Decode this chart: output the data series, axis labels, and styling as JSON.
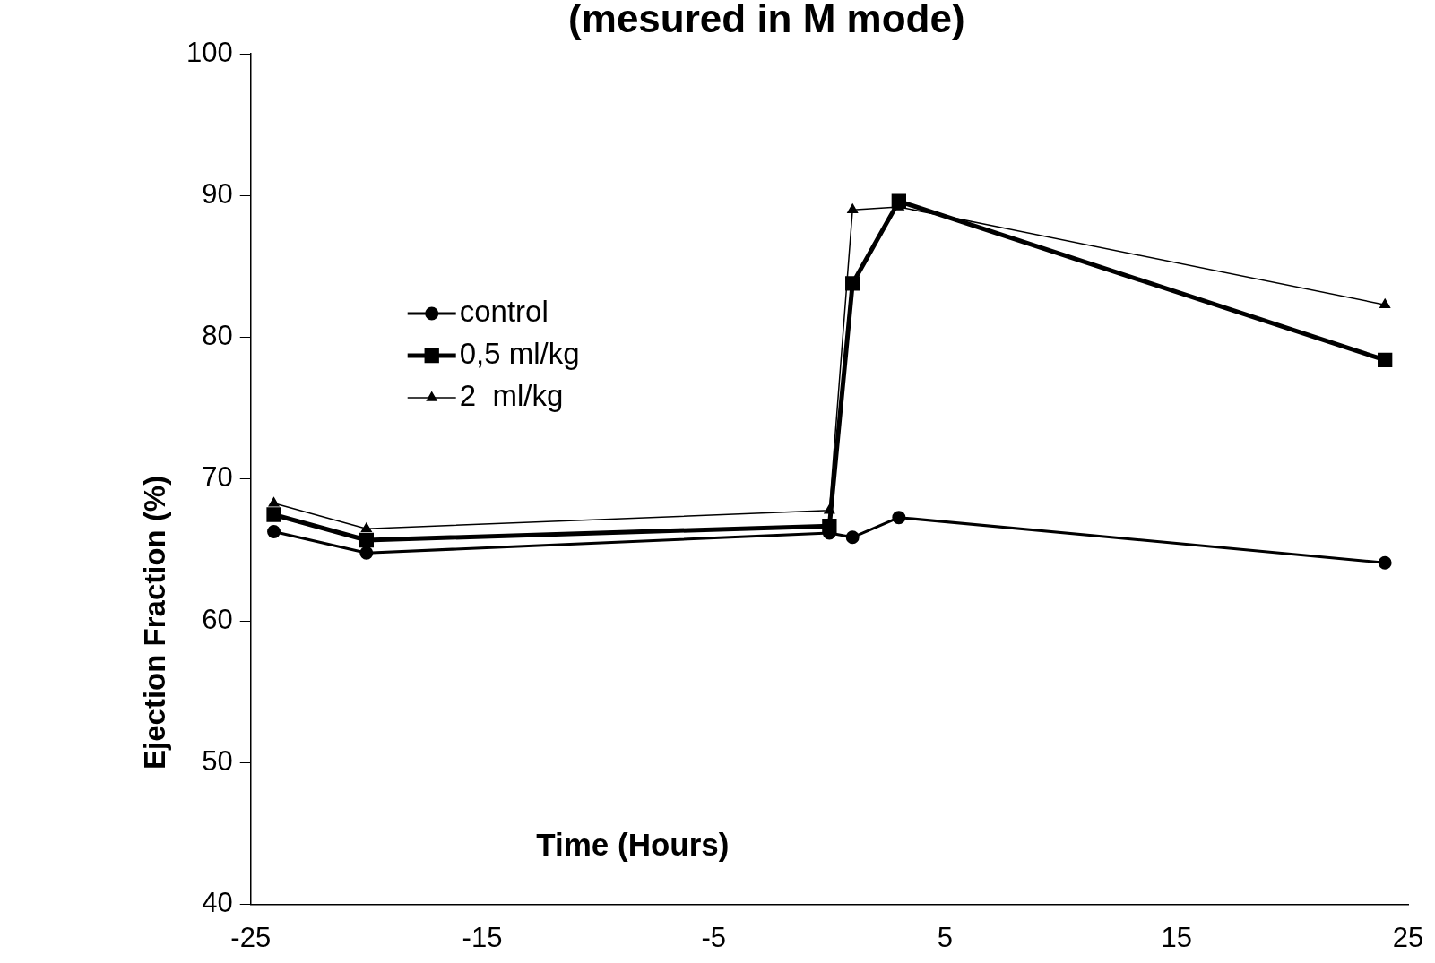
{
  "chart_data": {
    "type": "line",
    "title": "(mesured in M mode)",
    "xlabel": "Time (Hours)",
    "ylabel": "Ejection Fraction (%)",
    "xlim": [
      -25,
      25
    ],
    "xticks": [
      -25,
      -15,
      -5,
      5,
      15,
      25
    ],
    "ylim": [
      40,
      100
    ],
    "yticks": [
      40,
      50,
      60,
      70,
      80,
      90,
      100
    ],
    "grid": false,
    "legend": "top left",
    "series": [
      {
        "name": "control",
        "color": "#000000",
        "marker": "circle",
        "x": [
          -24,
          -20,
          0,
          1,
          3,
          24
        ],
        "values": [
          66.3,
          64.8,
          66.2,
          65.9,
          67.3,
          64.1
        ]
      },
      {
        "name": "0,5 ml/kg",
        "color": "#000000",
        "marker": "square",
        "x": [
          -24,
          -20,
          0,
          1,
          3,
          24
        ],
        "values": [
          67.5,
          65.7,
          66.7,
          83.8,
          89.6,
          78.4
        ]
      },
      {
        "name": "2  ml/kg",
        "color": "#000000",
        "marker": "triangle",
        "x": [
          -24,
          -20,
          0,
          1,
          3,
          24
        ],
        "values": [
          68.3,
          66.5,
          67.8,
          89.0,
          89.2,
          82.3
        ]
      }
    ]
  }
}
